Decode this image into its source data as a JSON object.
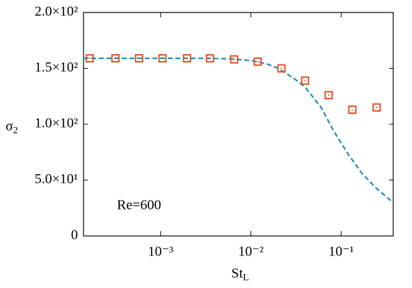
{
  "chart_data": {
    "type": "scatter",
    "xlabel": {
      "text": "St",
      "subscript": "L"
    },
    "ylabel": {
      "text": "σ",
      "subscript": "2"
    },
    "annotation": "Re=600",
    "xscale": "log",
    "xlim": [
      0.00014,
      0.377
    ],
    "ylim": [
      0,
      200
    ],
    "xticks": [
      {
        "value": 0.001,
        "label": "10⁻³"
      },
      {
        "value": 0.01,
        "label": "10⁻²"
      },
      {
        "value": 0.1,
        "label": "10⁻¹"
      }
    ],
    "yticks": [
      0,
      {
        "value": 50,
        "label": "5.0×10¹"
      },
      {
        "value": 100,
        "label": "1.0×10²"
      },
      {
        "value": 150,
        "label": "1.5×10²"
      },
      {
        "value": 200,
        "label": "2.0×10²"
      }
    ],
    "series": [
      {
        "style": "dashed-line",
        "color": "#1a8cc0",
        "x": [
          0.00014,
          0.0003,
          0.001,
          0.003,
          0.006,
          0.01,
          0.015,
          0.02,
          0.03,
          0.04,
          0.06,
          0.084,
          0.12,
          0.17,
          0.25,
          0.377
        ],
        "values": [
          159,
          159,
          159,
          159,
          158.5,
          157,
          154,
          150,
          141,
          133,
          115,
          93,
          73,
          56,
          42,
          30
        ]
      },
      {
        "style": "square",
        "color": "#e8501e",
        "x": [
          0.000164,
          0.000316,
          0.000578,
          0.00105,
          0.00196,
          0.00352,
          0.00653,
          0.0119,
          0.0218,
          0.0398,
          0.0728,
          0.133,
          0.247
        ],
        "values": [
          159,
          159,
          159,
          159,
          159,
          159,
          158,
          156,
          150,
          139,
          126,
          113,
          115
        ]
      }
    ]
  }
}
